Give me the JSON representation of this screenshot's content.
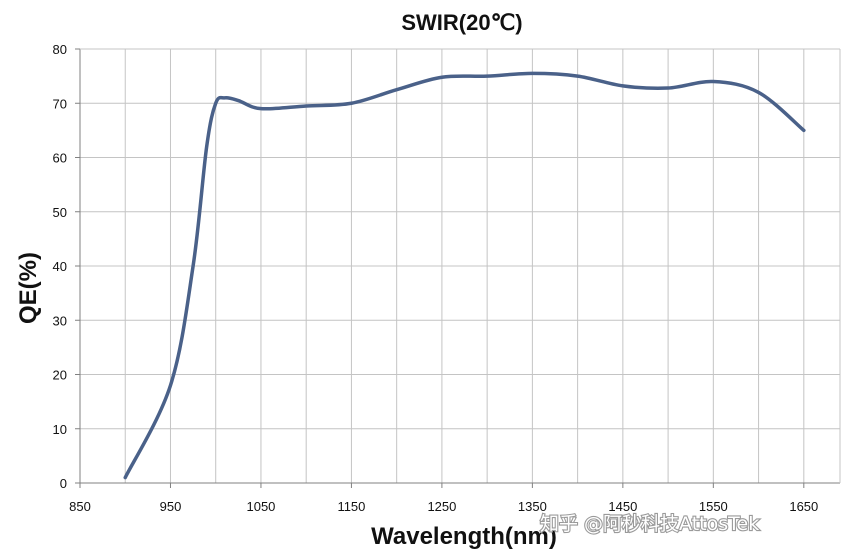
{
  "chart_data": {
    "type": "line",
    "title": "SWIR(20℃)",
    "xlabel": "Wavelength(nm)",
    "ylabel": "QE(%)",
    "xlim": [
      850,
      1690
    ],
    "ylim": [
      0,
      80
    ],
    "x_ticks": [
      850,
      950,
      1050,
      1150,
      1250,
      1350,
      1450,
      1550,
      1650
    ],
    "y_ticks": [
      0,
      10,
      20,
      30,
      40,
      50,
      60,
      70,
      80
    ],
    "grid": true,
    "grid_x_step": 50,
    "grid_y_step": 10,
    "legend": "none",
    "series": [
      {
        "color": "#4a6189",
        "x": [
          900,
          950,
          975,
          990,
          1000,
          1010,
          1025,
          1050,
          1100,
          1150,
          1200,
          1250,
          1300,
          1350,
          1400,
          1450,
          1500,
          1550,
          1600,
          1650
        ],
        "y": [
          1,
          18,
          40,
          62,
          70,
          71,
          70.5,
          69,
          69.5,
          70,
          72.5,
          74.8,
          75,
          75.5,
          75,
          73.2,
          72.8,
          74,
          72,
          65
        ]
      }
    ]
  },
  "watermark": "知乎 @阿秒科技AttosTek"
}
